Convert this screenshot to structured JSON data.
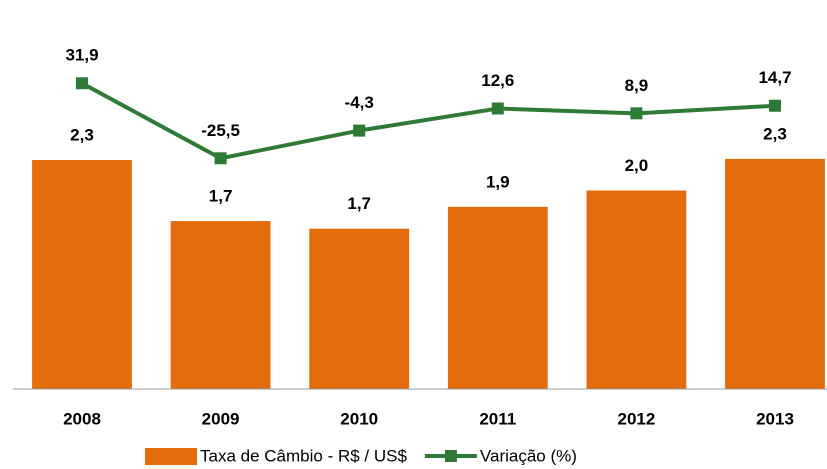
{
  "chart_data": {
    "type": "bar_line",
    "categories": [
      "2008",
      "2009",
      "2010",
      "2011",
      "2012",
      "2013"
    ],
    "series": [
      {
        "name": "Taxa de Câmbio - R$ / US$",
        "type": "bar",
        "color": "#e46c0a",
        "values": [
          2.3,
          1.74,
          1.67,
          1.87,
          2.02,
          2.31
        ],
        "value_labels": [
          "2,3",
          "1,7",
          "1,7",
          "1,9",
          "2,0",
          "2,3"
        ]
      },
      {
        "name": "Variação (%)",
        "type": "line",
        "axis": "y2",
        "color": "#2e7a36",
        "values": [
          31.9,
          -25.5,
          -4.3,
          12.6,
          8.9,
          14.7
        ],
        "value_labels": [
          "31,9",
          "-25,5",
          "-4,3",
          "12,6",
          "8,9",
          "14,7"
        ]
      }
    ],
    "ylim": [
      0.2,
      3.4
    ],
    "y2lim": [
      -202,
      65
    ],
    "legend": "bottom"
  }
}
